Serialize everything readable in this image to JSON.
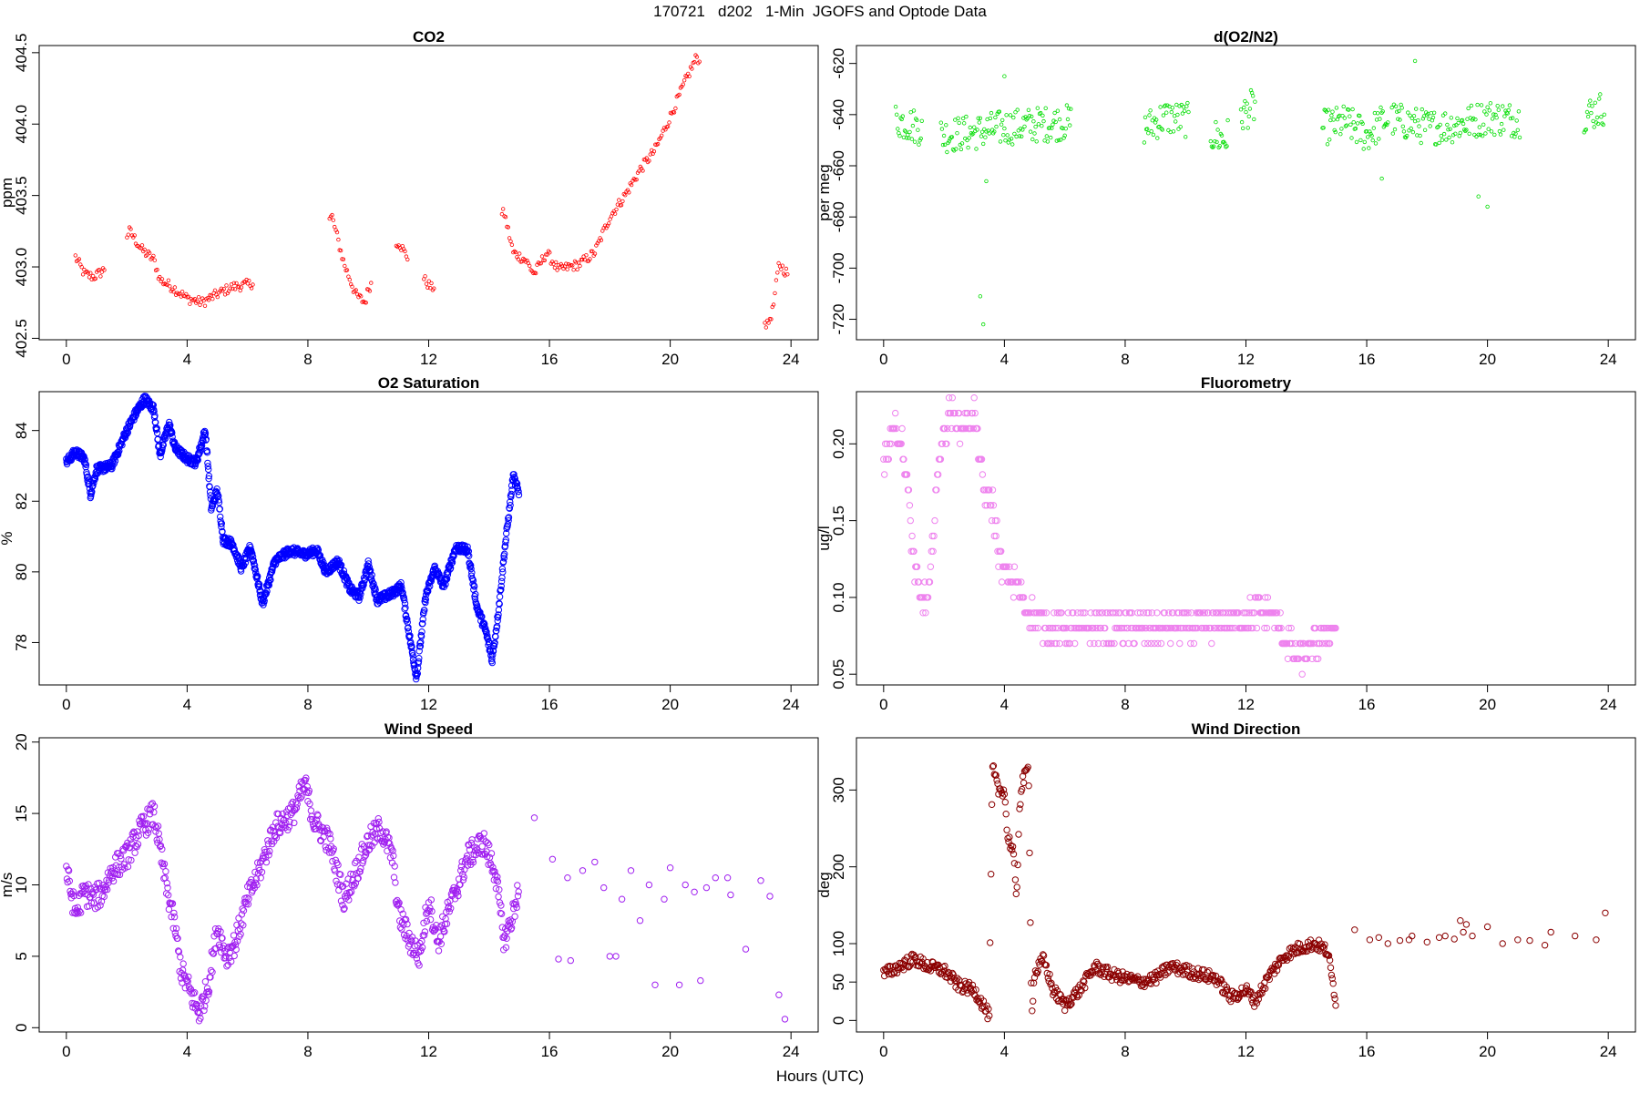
{
  "figure": {
    "title": "170721   d202   1-Min  JGOFS and Optode Data",
    "xlabel": "Hours (UTC)"
  },
  "chart_data": [
    {
      "type": "scatter",
      "title": "CO2",
      "ylabel": "ppm",
      "xlim": [
        -0.9,
        24.9
      ],
      "ylim": [
        402.49,
        404.55
      ],
      "xticks": [
        0,
        4,
        8,
        12,
        16,
        20,
        24
      ],
      "yticks": [
        402.5,
        403.0,
        403.5,
        404.0,
        404.5
      ],
      "ytick_labels": [
        "402.5",
        "403.0",
        "403.5",
        "404.0",
        "404.5"
      ],
      "color": "#ff0000",
      "marker_size": "small",
      "keypoints": [
        [
          0.3,
          403.07
        ],
        [
          0.6,
          402.95
        ],
        [
          0.9,
          402.93
        ],
        [
          1.2,
          402.97
        ],
        [
          2.1,
          403.25
        ],
        [
          2.5,
          403.12
        ],
        [
          2.9,
          403.05
        ],
        [
          3.1,
          402.91
        ],
        [
          3.5,
          402.86
        ],
        [
          4.0,
          402.78
        ],
        [
          4.5,
          402.75
        ],
        [
          5.0,
          402.81
        ],
        [
          5.5,
          402.86
        ],
        [
          6.1,
          402.88
        ],
        [
          8.8,
          403.35
        ],
        [
          9.2,
          403.02
        ],
        [
          9.6,
          402.8
        ],
        [
          9.9,
          402.75
        ],
        [
          10.0,
          402.85
        ],
        [
          11.0,
          403.18
        ],
        [
          11.2,
          403.1
        ],
        [
          11.9,
          402.9
        ],
        [
          12.1,
          402.85
        ],
        [
          14.5,
          403.38
        ],
        [
          14.8,
          403.1
        ],
        [
          15.2,
          403.05
        ],
        [
          15.5,
          402.95
        ],
        [
          15.9,
          403.1
        ],
        [
          16.3,
          402.98
        ],
        [
          17.0,
          403.02
        ],
        [
          17.5,
          403.1
        ],
        [
          18.0,
          403.35
        ],
        [
          18.5,
          403.5
        ],
        [
          19.0,
          403.68
        ],
        [
          19.5,
          403.82
        ],
        [
          20.0,
          404.05
        ],
        [
          20.5,
          404.3
        ],
        [
          20.9,
          404.48
        ],
        [
          23.2,
          402.58
        ],
        [
          23.4,
          402.7
        ],
        [
          23.6,
          403.02
        ],
        [
          23.9,
          402.95
        ]
      ],
      "gaps": [
        [
          1.3,
          2.0
        ],
        [
          6.2,
          8.7
        ],
        [
          10.1,
          10.9
        ],
        [
          11.3,
          11.8
        ],
        [
          12.2,
          14.4
        ],
        [
          21.0,
          23.1
        ]
      ],
      "spread": 0.035,
      "density": 4
    },
    {
      "type": "scatter",
      "title": "d(O2/N2)",
      "ylabel": "per meg",
      "xlim": [
        -0.9,
        24.9
      ],
      "ylim": [
        -728,
        -613
      ],
      "xticks": [
        0,
        4,
        8,
        12,
        16,
        20,
        24
      ],
      "yticks": [
        -720,
        -700,
        -680,
        -660,
        -640,
        -620
      ],
      "ytick_labels": [
        "-720",
        "-700",
        "-680",
        "-660",
        "-640",
        "-620"
      ],
      "color": "#00dd00",
      "marker_size": "small",
      "keypoints": [
        [
          0.4,
          -642
        ],
        [
          1.2,
          -645
        ],
        [
          2.0,
          -648
        ],
        [
          3.0,
          -647
        ],
        [
          4.0,
          -645
        ],
        [
          5.0,
          -644
        ],
        [
          6.1,
          -643
        ],
        [
          8.7,
          -645
        ],
        [
          9.3,
          -641
        ],
        [
          10.0,
          -642
        ],
        [
          10.9,
          -648
        ],
        [
          11.3,
          -650
        ],
        [
          11.9,
          -640
        ],
        [
          12.2,
          -637
        ],
        [
          14.6,
          -645
        ],
        [
          15.3,
          -643
        ],
        [
          16.0,
          -648
        ],
        [
          16.6,
          -642
        ],
        [
          16.9,
          -642
        ],
        [
          18.0,
          -645
        ],
        [
          19.0,
          -644
        ],
        [
          20.0,
          -641
        ],
        [
          21.0,
          -642
        ],
        [
          23.3,
          -640
        ],
        [
          23.9,
          -637
        ]
      ],
      "gaps": [
        [
          1.3,
          1.9
        ],
        [
          6.2,
          8.6
        ],
        [
          10.1,
          10.8
        ],
        [
          11.4,
          11.8
        ],
        [
          12.3,
          14.5
        ],
        [
          16.7,
          16.8
        ],
        [
          21.1,
          23.2
        ]
      ],
      "spread": 7,
      "density": 5
    },
    {
      "type": "scatter",
      "title": "O2 Saturation",
      "ylabel": "%",
      "xlim": [
        -0.9,
        24.9
      ],
      "ylim": [
        76.8,
        85.1
      ],
      "xticks": [
        0,
        4,
        8,
        12,
        16,
        20,
        24
      ],
      "yticks": [
        78,
        80,
        82,
        84
      ],
      "ytick_labels": [
        "78",
        "80",
        "82",
        "84"
      ],
      "color": "#0000ff",
      "marker_size": "large",
      "keypoints": [
        [
          0.0,
          83.1
        ],
        [
          0.3,
          83.4
        ],
        [
          0.6,
          83.2
        ],
        [
          0.8,
          82.2
        ],
        [
          1.0,
          82.9
        ],
        [
          1.5,
          83.0
        ],
        [
          2.0,
          84.0
        ],
        [
          2.3,
          84.5
        ],
        [
          2.6,
          84.9
        ],
        [
          2.9,
          84.6
        ],
        [
          3.1,
          83.3
        ],
        [
          3.4,
          84.2
        ],
        [
          3.6,
          83.5
        ],
        [
          4.0,
          83.2
        ],
        [
          4.3,
          83.1
        ],
        [
          4.6,
          84.0
        ],
        [
          4.8,
          81.8
        ],
        [
          5.0,
          82.3
        ],
        [
          5.2,
          80.9
        ],
        [
          5.5,
          80.8
        ],
        [
          5.8,
          80.1
        ],
        [
          6.1,
          80.7
        ],
        [
          6.5,
          79.1
        ],
        [
          6.9,
          80.3
        ],
        [
          7.4,
          80.6
        ],
        [
          7.9,
          80.5
        ],
        [
          8.3,
          80.6
        ],
        [
          8.6,
          80.0
        ],
        [
          9.0,
          80.3
        ],
        [
          9.4,
          79.5
        ],
        [
          9.7,
          79.3
        ],
        [
          10.0,
          80.2
        ],
        [
          10.3,
          79.2
        ],
        [
          10.8,
          79.4
        ],
        [
          11.1,
          79.6
        ],
        [
          11.4,
          78.0
        ],
        [
          11.6,
          77.0
        ],
        [
          11.9,
          79.3
        ],
        [
          12.2,
          80.1
        ],
        [
          12.5,
          79.6
        ],
        [
          12.9,
          80.7
        ],
        [
          13.3,
          80.6
        ],
        [
          13.6,
          79.0
        ],
        [
          13.9,
          78.3
        ],
        [
          14.1,
          77.5
        ],
        [
          14.3,
          78.8
        ],
        [
          14.5,
          80.5
        ],
        [
          14.8,
          82.7
        ],
        [
          15.0,
          82.2
        ]
      ],
      "spread": 0.12,
      "density": 14
    },
    {
      "type": "scatter",
      "title": "Fluorometry",
      "ylabel": "ug/l",
      "xlim": [
        -0.9,
        24.9
      ],
      "ylim": [
        0.043,
        0.234
      ],
      "xticks": [
        0,
        4,
        8,
        12,
        16,
        20,
        24
      ],
      "yticks": [
        0.05,
        0.1,
        0.15,
        0.2
      ],
      "ytick_labels": [
        "0.05",
        "0.10",
        "0.15",
        "0.20"
      ],
      "color": "#ee82ee",
      "marker_size": "large",
      "quantized": 0.01,
      "keypoints": [
        [
          0.0,
          0.19
        ],
        [
          0.3,
          0.21
        ],
        [
          0.6,
          0.2
        ],
        [
          0.8,
          0.17
        ],
        [
          1.0,
          0.12
        ],
        [
          1.2,
          0.1
        ],
        [
          1.5,
          0.1
        ],
        [
          1.7,
          0.16
        ],
        [
          1.9,
          0.2
        ],
        [
          2.2,
          0.22
        ],
        [
          2.6,
          0.21
        ],
        [
          3.0,
          0.22
        ],
        [
          3.3,
          0.17
        ],
        [
          3.6,
          0.16
        ],
        [
          3.9,
          0.12
        ],
        [
          4.3,
          0.11
        ],
        [
          4.8,
          0.09
        ],
        [
          5.5,
          0.08
        ],
        [
          6.5,
          0.08
        ],
        [
          7.5,
          0.08
        ],
        [
          8.5,
          0.08
        ],
        [
          9.5,
          0.08
        ],
        [
          10.5,
          0.08
        ],
        [
          11.5,
          0.085
        ],
        [
          12.3,
          0.09
        ],
        [
          12.8,
          0.09
        ],
        [
          13.4,
          0.07
        ],
        [
          13.8,
          0.06
        ],
        [
          14.3,
          0.07
        ],
        [
          14.8,
          0.08
        ],
        [
          15.0,
          0.08
        ]
      ],
      "spread": 0.009,
      "density": 6
    },
    {
      "type": "scatter",
      "title": "Wind Speed",
      "ylabel": "m/s",
      "xlim": [
        -0.9,
        24.9
      ],
      "ylim": [
        -0.3,
        20.3
      ],
      "xticks": [
        0,
        4,
        8,
        12,
        16,
        20,
        24
      ],
      "yticks": [
        0,
        5,
        10,
        15,
        20
      ],
      "ytick_labels": [
        "0",
        "5",
        "10",
        "15",
        "20"
      ],
      "color": "#a020f0",
      "marker_size": "large",
      "keypoints": [
        [
          0.0,
          11.0
        ],
        [
          0.3,
          8.0
        ],
        [
          0.6,
          9.5
        ],
        [
          0.9,
          9.0
        ],
        [
          1.2,
          9.5
        ],
        [
          1.5,
          11.0
        ],
        [
          2.0,
          12.0
        ],
        [
          2.5,
          14.0
        ],
        [
          2.9,
          15.0
        ],
        [
          3.3,
          10.0
        ],
        [
          3.6,
          7.0
        ],
        [
          3.8,
          4.0
        ],
        [
          4.2,
          2.0
        ],
        [
          4.4,
          1.0
        ],
        [
          4.7,
          3.0
        ],
        [
          5.0,
          7.0
        ],
        [
          5.3,
          5.0
        ],
        [
          5.6,
          6.0
        ],
        [
          6.0,
          9.0
        ],
        [
          6.4,
          11.0
        ],
        [
          6.9,
          14.0
        ],
        [
          7.5,
          15.0
        ],
        [
          7.9,
          17.0
        ],
        [
          8.2,
          14.5
        ],
        [
          8.7,
          13.0
        ],
        [
          9.2,
          9.0
        ],
        [
          9.6,
          11.0
        ],
        [
          10.0,
          13.0
        ],
        [
          10.4,
          14.0
        ],
        [
          10.8,
          12.0
        ],
        [
          11.0,
          8.0
        ],
        [
          11.4,
          6.0
        ],
        [
          11.7,
          5.0
        ],
        [
          12.0,
          9.0
        ],
        [
          12.3,
          6.0
        ],
        [
          12.8,
          9.0
        ],
        [
          13.3,
          12.0
        ],
        [
          13.8,
          13.0
        ],
        [
          14.2,
          11.0
        ],
        [
          14.5,
          6.0
        ],
        [
          14.8,
          8.0
        ],
        [
          15.0,
          10.0
        ]
      ],
      "spread": 0.9,
      "density": 8,
      "sparse_points": [
        [
          15.5,
          14.7
        ],
        [
          16.1,
          11.8
        ],
        [
          16.3,
          4.8
        ],
        [
          16.6,
          10.5
        ],
        [
          16.7,
          4.7
        ],
        [
          17.1,
          11.0
        ],
        [
          17.5,
          11.6
        ],
        [
          17.8,
          9.8
        ],
        [
          18.0,
          5.0
        ],
        [
          18.2,
          5.0
        ],
        [
          18.4,
          9.0
        ],
        [
          18.7,
          11.0
        ],
        [
          19.0,
          7.5
        ],
        [
          19.3,
          10.0
        ],
        [
          19.5,
          3.0
        ],
        [
          19.8,
          9.0
        ],
        [
          20.0,
          11.2
        ],
        [
          20.3,
          3.0
        ],
        [
          20.8,
          9.5
        ],
        [
          21.2,
          9.8
        ],
        [
          21.5,
          10.5
        ],
        [
          21.9,
          10.5
        ],
        [
          22.0,
          9.3
        ],
        [
          23.0,
          10.3
        ],
        [
          23.3,
          9.2
        ],
        [
          23.6,
          2.3
        ],
        [
          23.8,
          0.6
        ],
        [
          22.5,
          5.5
        ],
        [
          21.0,
          3.3
        ],
        [
          20.5,
          10.0
        ]
      ]
    },
    {
      "type": "scatter",
      "title": "Wind Direction",
      "ylabel": "deg",
      "xlim": [
        -0.9,
        24.9
      ],
      "ylim": [
        -15,
        368
      ],
      "xticks": [
        0,
        4,
        8,
        12,
        16,
        20,
        24
      ],
      "yticks": [
        0,
        50,
        100,
        200,
        300
      ],
      "ytick_labels": [
        "0",
        "50",
        "100",
        "200",
        "300"
      ],
      "color": "#8b0000",
      "marker_size": "large",
      "keypoints": [
        [
          0.0,
          60
        ],
        [
          0.5,
          70
        ],
        [
          1.0,
          80
        ],
        [
          1.5,
          70
        ],
        [
          2.0,
          65
        ],
        [
          2.5,
          45
        ],
        [
          3.0,
          40
        ],
        [
          3.3,
          20
        ],
        [
          3.5,
          5
        ],
        [
          3.6,
          330
        ],
        [
          3.8,
          300
        ],
        [
          4.0,
          300
        ],
        [
          4.1,
          240
        ],
        [
          4.3,
          220
        ],
        [
          4.4,
          150
        ],
        [
          4.5,
          280
        ],
        [
          4.6,
          310
        ],
        [
          4.8,
          330
        ],
        [
          4.9,
          10
        ],
        [
          5.0,
          60
        ],
        [
          5.3,
          80
        ],
        [
          5.6,
          40
        ],
        [
          6.0,
          20
        ],
        [
          6.5,
          40
        ],
        [
          7.0,
          70
        ],
        [
          7.5,
          60
        ],
        [
          8.0,
          55
        ],
        [
          8.5,
          50
        ],
        [
          9.0,
          55
        ],
        [
          9.5,
          70
        ],
        [
          10.0,
          65
        ],
        [
          10.5,
          60
        ],
        [
          11.0,
          55
        ],
        [
          11.5,
          30
        ],
        [
          12.0,
          40
        ],
        [
          12.3,
          25
        ],
        [
          12.8,
          60
        ],
        [
          13.3,
          85
        ],
        [
          13.8,
          95
        ],
        [
          14.3,
          100
        ],
        [
          14.7,
          90
        ],
        [
          15.0,
          20
        ]
      ],
      "spread": 8,
      "density": 6,
      "sparse_points": [
        [
          15.6,
          118
        ],
        [
          16.1,
          105
        ],
        [
          16.4,
          108
        ],
        [
          16.7,
          100
        ],
        [
          17.1,
          104
        ],
        [
          17.5,
          110
        ],
        [
          18.0,
          102
        ],
        [
          18.4,
          108
        ],
        [
          18.9,
          106
        ],
        [
          19.2,
          115
        ],
        [
          19.5,
          110
        ],
        [
          20.0,
          122
        ],
        [
          20.5,
          100
        ],
        [
          21.0,
          105
        ],
        [
          21.4,
          104
        ],
        [
          21.9,
          98
        ],
        [
          22.1,
          115
        ],
        [
          22.9,
          110
        ],
        [
          23.6,
          105
        ],
        [
          23.9,
          140
        ],
        [
          19.1,
          130
        ],
        [
          19.3,
          125
        ],
        [
          17.4,
          105
        ],
        [
          18.6,
          110
        ]
      ]
    }
  ]
}
